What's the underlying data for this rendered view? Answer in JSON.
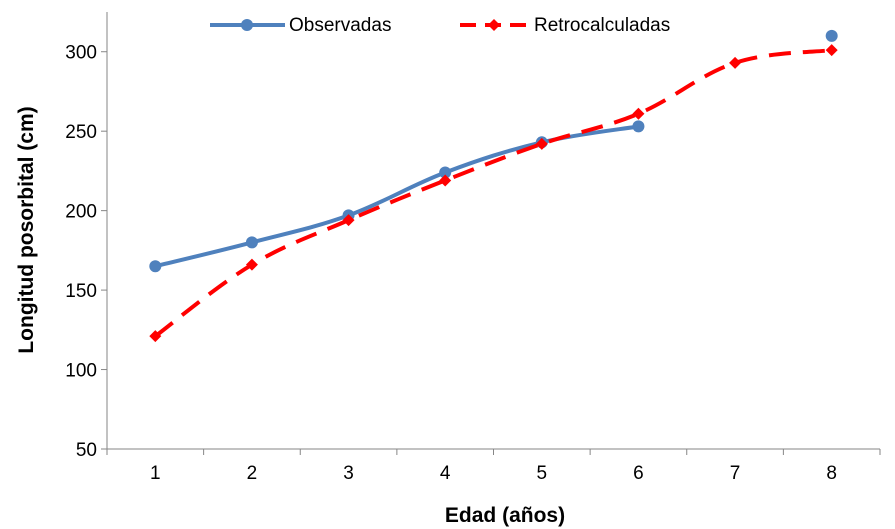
{
  "chart_data": {
    "type": "line",
    "xlabel": "Edad (años)",
    "ylabel": "Longitud posorbital (cm)",
    "categories": [
      1,
      2,
      3,
      4,
      5,
      6,
      7,
      8
    ],
    "ylim": [
      50,
      325
    ],
    "yticks": [
      50,
      100,
      150,
      200,
      250,
      300
    ],
    "grid": false,
    "legend_position": "top-center",
    "series": [
      {
        "name": "Observadas",
        "color": "#4F81BD",
        "line_style": "solid",
        "marker": "circle",
        "points": [
          [
            1,
            165
          ],
          [
            2,
            180
          ],
          [
            3,
            197
          ],
          [
            4,
            224
          ],
          [
            5,
            243
          ],
          [
            6,
            253
          ],
          [
            8,
            310
          ]
        ],
        "connected_until_x": 6
      },
      {
        "name": "Retrocalculadas",
        "color": "#FF0000",
        "line_style": "dashed",
        "marker": "diamond",
        "points": [
          [
            1,
            121
          ],
          [
            2,
            166
          ],
          [
            3,
            194
          ],
          [
            4,
            219
          ],
          [
            5,
            242
          ],
          [
            6,
            261
          ],
          [
            7,
            293
          ],
          [
            8,
            301
          ]
        ]
      }
    ]
  }
}
